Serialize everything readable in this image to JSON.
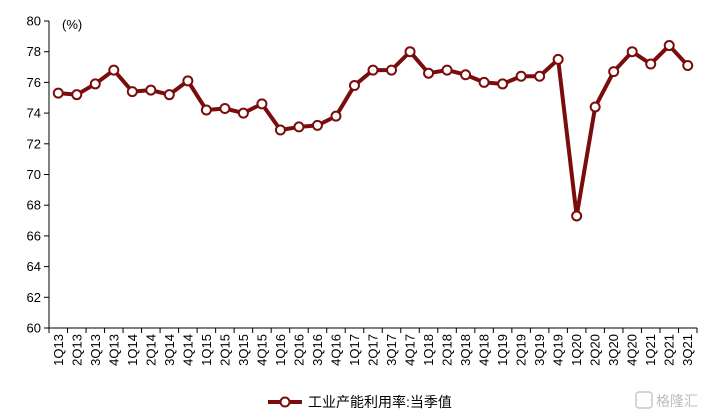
{
  "chart_data": {
    "type": "line",
    "title": "",
    "unit_label": "(%)",
    "xlabel": "",
    "ylabel": "",
    "ylim": [
      60,
      80
    ],
    "yticks": [
      60,
      62,
      64,
      66,
      68,
      70,
      72,
      74,
      76,
      78,
      80
    ],
    "grid": false,
    "legend_position": "bottom-center",
    "categories": [
      "1Q13",
      "2Q13",
      "3Q13",
      "4Q13",
      "1Q14",
      "2Q14",
      "3Q14",
      "4Q14",
      "1Q15",
      "2Q15",
      "3Q15",
      "4Q15",
      "1Q16",
      "2Q16",
      "3Q16",
      "4Q16",
      "1Q17",
      "2Q17",
      "3Q17",
      "4Q17",
      "1Q18",
      "2Q18",
      "3Q18",
      "4Q18",
      "1Q19",
      "2Q19",
      "3Q19",
      "4Q19",
      "1Q20",
      "2Q20",
      "3Q20",
      "4Q20",
      "1Q21",
      "2Q21",
      "3Q21"
    ],
    "series": [
      {
        "name": "工业产能利用率:当季值",
        "color": "#7b0c0c",
        "values": [
          75.3,
          75.2,
          75.9,
          76.8,
          75.4,
          75.5,
          75.2,
          76.1,
          74.2,
          74.3,
          74.0,
          74.6,
          72.9,
          73.1,
          73.2,
          73.8,
          75.8,
          76.8,
          76.8,
          78.0,
          76.6,
          76.8,
          76.5,
          76.0,
          75.9,
          76.4,
          76.4,
          77.5,
          67.3,
          74.4,
          76.7,
          78.0,
          77.2,
          78.4,
          77.1
        ]
      }
    ]
  },
  "watermark": {
    "text": "格隆汇"
  }
}
